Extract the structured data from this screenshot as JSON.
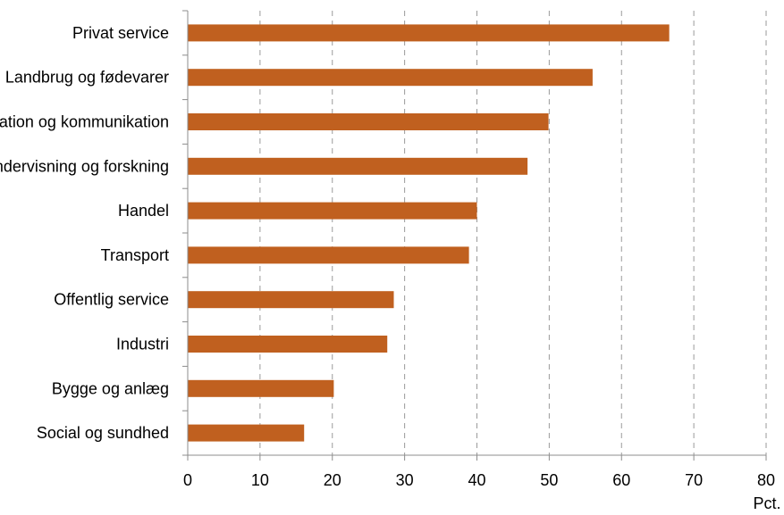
{
  "chart_data": {
    "type": "bar",
    "orientation": "horizontal",
    "title": "",
    "xlabel": "",
    "ylabel": "",
    "unit_label": "Pct.",
    "categories": [
      "Privat service",
      "Landbrug og fødevarer",
      "Information og kommunikation",
      "Undervisning og forskning",
      "Handel",
      "Transport",
      "Offentlig service",
      "Industri",
      "Bygge og anlæg",
      "Social og sundhed"
    ],
    "values": [
      66.6,
      56.0,
      49.9,
      47.0,
      40.0,
      38.9,
      28.5,
      27.6,
      20.2,
      16.1
    ],
    "xlim": [
      0,
      80
    ],
    "xticks": [
      0,
      10,
      20,
      30,
      40,
      50,
      60,
      70,
      80
    ],
    "grid": "vertical dashed",
    "bar_color": "#C0601F",
    "grid_color": "#9a9a9a"
  }
}
